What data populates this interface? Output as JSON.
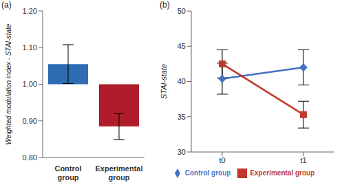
{
  "chart_data": [
    {
      "type": "bar",
      "title": "(a)",
      "y_label": "Weighted modulation index - STAI-state",
      "categories": [
        "Control group",
        "Experimental group"
      ],
      "values": [
        1.055,
        0.885
      ],
      "errors": [
        0.053,
        0.036
      ],
      "baseline": 1.0,
      "colors": [
        "#2e6db4",
        "#b01c2a"
      ],
      "ylim": [
        0.8,
        1.2
      ],
      "yticks": [
        {
          "value": 0.8,
          "label": "0.80"
        },
        {
          "value": 0.9,
          "label": "0.90"
        },
        {
          "value": 1.0,
          "label": "1.00"
        },
        {
          "value": 1.1,
          "label": "1.10"
        },
        {
          "value": 1.2,
          "label": "1.20"
        }
      ],
      "grid": false
    },
    {
      "type": "line",
      "title": "(b)",
      "y_label": "STAI-state",
      "categories": [
        "t0",
        "t1"
      ],
      "series": [
        {
          "name": "Control group",
          "color": "#4472c4",
          "marker": "diamond",
          "values": [
            40.4,
            42.0
          ],
          "errors": [
            2.2,
            2.5
          ]
        },
        {
          "name": "Experimental group",
          "color": "#c0392b",
          "marker": "square",
          "values": [
            42.5,
            35.3
          ],
          "errors": [
            2.0,
            1.9
          ]
        }
      ],
      "ylim": [
        30,
        50
      ],
      "yticks": [
        30,
        35,
        40,
        45,
        50
      ],
      "grid": false,
      "legend": "bottom"
    }
  ]
}
